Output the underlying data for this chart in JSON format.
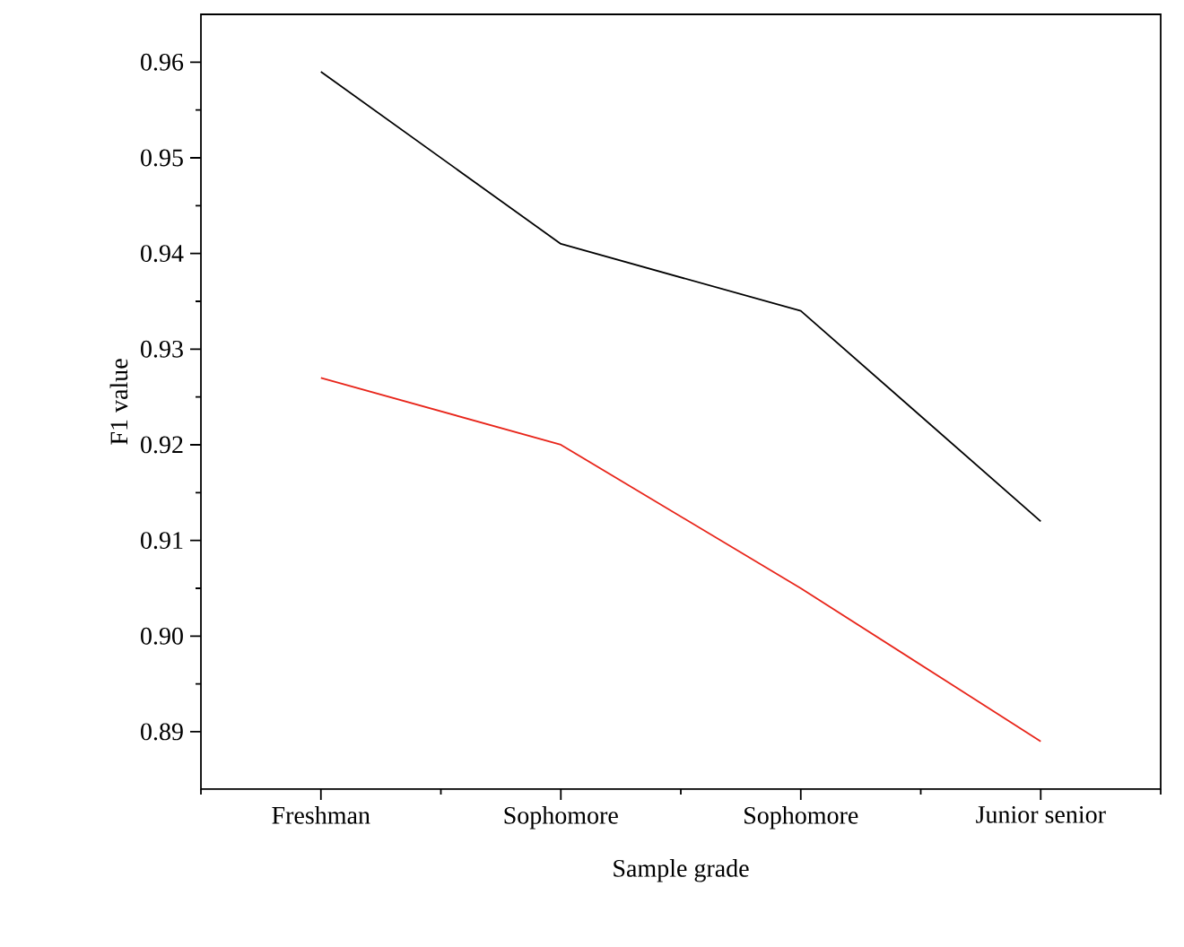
{
  "chart_data": {
    "type": "line",
    "xlabel": "Sample grade",
    "ylabel": "F1 value",
    "categories": [
      "Freshman",
      "Sophomore",
      "Sophomore",
      "Junior senior"
    ],
    "series": [
      {
        "color": "#000000",
        "values": [
          0.959,
          0.941,
          0.934,
          0.912
        ]
      },
      {
        "color": "#e8251a",
        "values": [
          0.927,
          0.92,
          0.905,
          0.889
        ]
      }
    ],
    "ylim": [
      0.884,
      0.965
    ],
    "yticks": [
      {
        "value": 0.89,
        "label": "0.89"
      },
      {
        "value": 0.9,
        "label": "0.90"
      },
      {
        "value": 0.91,
        "label": "0.91"
      },
      {
        "value": 0.92,
        "label": "0.92"
      },
      {
        "value": 0.93,
        "label": "0.93"
      },
      {
        "value": 0.94,
        "label": "0.94"
      },
      {
        "value": 0.95,
        "label": "0.95"
      },
      {
        "value": 0.96,
        "label": "0.96"
      }
    ],
    "marker": "none",
    "line_style": "solid"
  }
}
